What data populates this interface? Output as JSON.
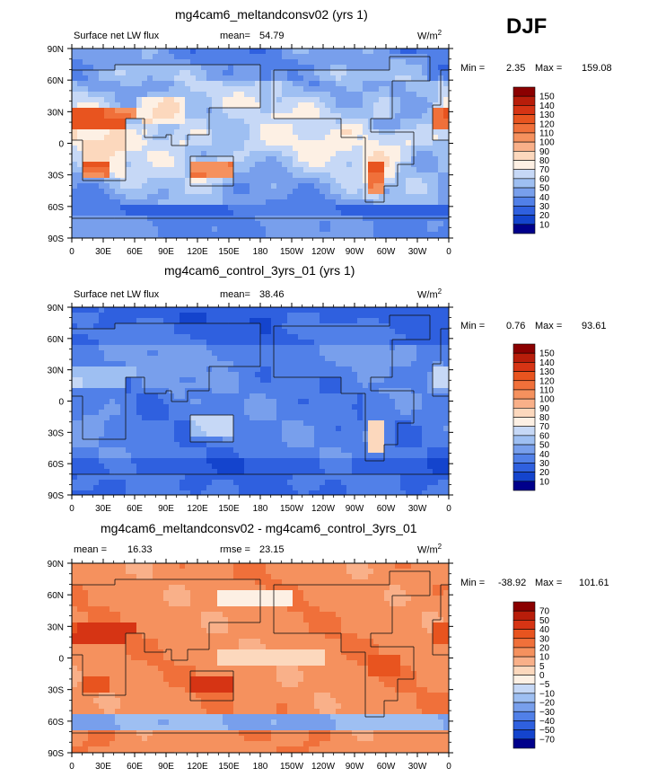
{
  "season": "DJF",
  "units": "W/m",
  "units_sup": "2",
  "chart_data": [
    {
      "type": "heatmap",
      "title": "mg4cam6_meltandconsv02 (yrs 1)",
      "left_label": "Surface net LW flux",
      "stat_label": "mean=",
      "stat_value": "54.79",
      "min_label": "Min =",
      "min_value": "2.35",
      "max_label": "Max =",
      "max_value": "159.08",
      "xticks": [
        "0",
        "30E",
        "60E",
        "90E",
        "120E",
        "150E",
        "180",
        "150W",
        "120W",
        "90W",
        "60W",
        "30W",
        "0"
      ],
      "yticks": [
        "90N",
        "60N",
        "30N",
        "0",
        "30S",
        "60S",
        "90S"
      ],
      "levels": [
        "150",
        "140",
        "130",
        "120",
        "110",
        "100",
        "90",
        "80",
        "70",
        "60",
        "50",
        "40",
        "30",
        "20",
        "10"
      ],
      "colors": [
        "#8b0000",
        "#b81d0a",
        "#d63414",
        "#e8541f",
        "#f0703a",
        "#f5915e",
        "#f9b089",
        "#fcd8bd",
        "#fdf0e4",
        "#c6d8f6",
        "#9ebff2",
        "#789fec",
        "#5180e8",
        "#2f60df",
        "#1444cd",
        "#00008b"
      ],
      "mean": 54.79
    },
    {
      "type": "heatmap",
      "title": "mg4cam6_control_3yrs_01 (yrs 1)",
      "left_label": "Surface net LW flux",
      "stat_label": "mean=",
      "stat_value": "38.46",
      "min_label": "Min =",
      "min_value": "0.76",
      "max_label": "Max =",
      "max_value": "93.61",
      "xticks": [
        "0",
        "30E",
        "60E",
        "90E",
        "120E",
        "150E",
        "180",
        "150W",
        "120W",
        "90W",
        "60W",
        "30W",
        "0"
      ],
      "yticks": [
        "90N",
        "60N",
        "30N",
        "0",
        "30S",
        "60S",
        "90S"
      ],
      "levels": [
        "150",
        "140",
        "130",
        "120",
        "110",
        "100",
        "90",
        "80",
        "70",
        "60",
        "50",
        "40",
        "30",
        "20",
        "10"
      ],
      "colors": [
        "#8b0000",
        "#b81d0a",
        "#d63414",
        "#e8541f",
        "#f0703a",
        "#f5915e",
        "#f9b089",
        "#fcd8bd",
        "#fdf0e4",
        "#c6d8f6",
        "#9ebff2",
        "#789fec",
        "#5180e8",
        "#2f60df",
        "#1444cd",
        "#00008b"
      ],
      "mean": 38.46
    },
    {
      "type": "heatmap",
      "title": "mg4cam6_meltandconsv02 - mg4cam6_control_3yrs_01",
      "left_label": "mean =",
      "left_value": "16.33",
      "stat_label": "rmse =",
      "stat_value": "23.15",
      "min_label": "Min =",
      "min_value": "-38.92",
      "max_label": "Max =",
      "max_value": "101.61",
      "xticks": [
        "0",
        "30E",
        "60E",
        "90E",
        "120E",
        "150E",
        "180",
        "150W",
        "120W",
        "90W",
        "60W",
        "30W",
        "0"
      ],
      "yticks": [
        "90N",
        "60N",
        "30N",
        "0",
        "30S",
        "60S",
        "90S"
      ],
      "levels": [
        "70",
        "50",
        "40",
        "30",
        "20",
        "10",
        "5",
        "0",
        "−5",
        "−10",
        "−20",
        "−30",
        "−40",
        "−50",
        "−70"
      ],
      "colors": [
        "#8b0000",
        "#b81d0a",
        "#d63414",
        "#e8541f",
        "#f0703a",
        "#f5915e",
        "#f9b089",
        "#fcd8bd",
        "#fdf0e4",
        "#c6d8f6",
        "#9ebff2",
        "#789fec",
        "#5180e8",
        "#2f60df",
        "#1444cd",
        "#00008b"
      ],
      "mean": 16.33
    }
  ]
}
